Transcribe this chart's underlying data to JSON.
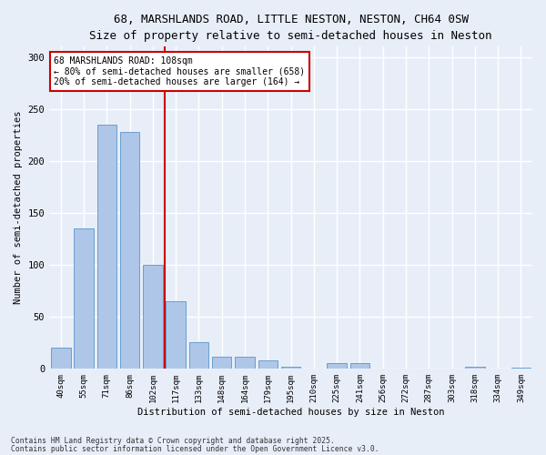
{
  "title1": "68, MARSHLANDS ROAD, LITTLE NESTON, NESTON, CH64 0SW",
  "title2": "Size of property relative to semi-detached houses in Neston",
  "xlabel": "Distribution of semi-detached houses by size in Neston",
  "ylabel": "Number of semi-detached properties",
  "bar_values": [
    20,
    135,
    235,
    228,
    100,
    65,
    25,
    11,
    11,
    8,
    2,
    0,
    5,
    5,
    0,
    0,
    0,
    0,
    2,
    0,
    1
  ],
  "categories": [
    "40sqm",
    "55sqm",
    "71sqm",
    "86sqm",
    "102sqm",
    "117sqm",
    "133sqm",
    "148sqm",
    "164sqm",
    "179sqm",
    "195sqm",
    "210sqm",
    "225sqm",
    "241sqm",
    "256sqm",
    "272sqm",
    "287sqm",
    "303sqm",
    "318sqm",
    "334sqm",
    "349sqm"
  ],
  "bar_color": "#aec6e8",
  "bar_edge_color": "#6a9fd0",
  "vline_color": "#cc0000",
  "vline_x_index": 4,
  "annotation_title": "68 MARSHLANDS ROAD: 108sqm",
  "annotation_line1": "← 80% of semi-detached houses are smaller (658)",
  "annotation_line2": "20% of semi-detached houses are larger (164) →",
  "annotation_box_color": "#ffffff",
  "annotation_box_edge": "#cc0000",
  "ylim": [
    0,
    310
  ],
  "yticks": [
    0,
    50,
    100,
    150,
    200,
    250,
    300
  ],
  "footer1": "Contains HM Land Registry data © Crown copyright and database right 2025.",
  "footer2": "Contains public sector information licensed under the Open Government Licence v3.0.",
  "bg_color": "#e8eef8",
  "plot_bg_color": "#e8eef8",
  "title_fontsize": 9,
  "subtitle_fontsize": 8.5
}
